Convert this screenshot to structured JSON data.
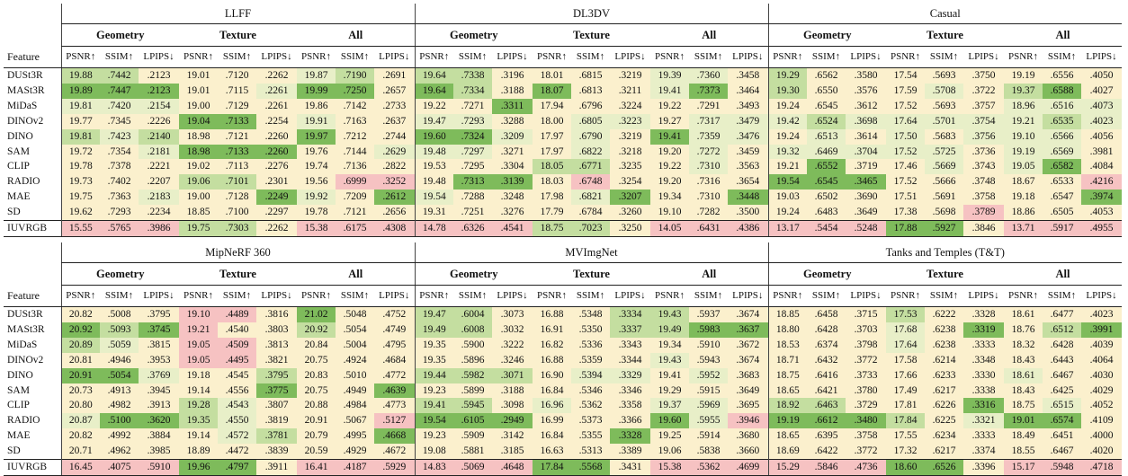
{
  "colors": {
    "best": "#7ebb5b",
    "good": "#c4dea0",
    "mild": "#e8efc8",
    "neutral": "#fbf0cd",
    "bad": "#f6c2c2",
    "worst": "#f4aaaa"
  },
  "header": {
    "feature_label": "Feature",
    "groups": [
      "Geometry",
      "Texture",
      "All"
    ],
    "metrics": [
      "PSNR↑",
      "SSIM↑",
      "LPIPS↓"
    ]
  },
  "features": [
    "DUSt3R",
    "MASt3R",
    "MiDaS",
    "DINOv2",
    "DINO",
    "SAM",
    "CLIP",
    "RADIO",
    "MAE",
    "SD",
    "IUVRGB"
  ],
  "sections": [
    {
      "datasets": [
        "LLFF",
        "DL3DV",
        "Casual"
      ],
      "rows": [
        [
          "19.88",
          ".7442",
          ".2123",
          "19.01",
          ".7120",
          ".2262",
          "19.87",
          ".7190",
          ".2691",
          "19.64",
          ".7338",
          ".3196",
          "18.01",
          ".6815",
          ".3219",
          "19.39",
          ".7360",
          ".3458",
          "19.29",
          ".6562",
          ".3580",
          "17.54",
          ".5693",
          ".3750",
          "19.19",
          ".6556",
          ".4050"
        ],
        [
          "19.89",
          ".7447",
          ".2123",
          "19.01",
          ".7115",
          ".2261",
          "19.99",
          ".7250",
          ".2657",
          "19.64",
          ".7334",
          ".3188",
          "18.07",
          ".6813",
          ".3211",
          "19.41",
          ".7373",
          ".3464",
          "19.30",
          ".6550",
          ".3576",
          "17.59",
          ".5708",
          ".3722",
          "19.37",
          ".6588",
          ".4027"
        ],
        [
          "19.81",
          ".7420",
          ".2154",
          "19.00",
          ".7129",
          ".2261",
          "19.86",
          ".7142",
          ".2733",
          "19.22",
          ".7271",
          ".3311",
          "17.94",
          ".6796",
          ".3224",
          "19.22",
          ".7291",
          ".3493",
          "19.24",
          ".6545",
          ".3612",
          "17.52",
          ".5693",
          ".3757",
          "18.96",
          ".6516",
          ".4073"
        ],
        [
          "19.77",
          ".7345",
          ".2226",
          "19.04",
          ".7133",
          ".2254",
          "19.91",
          ".7163",
          ".2637",
          "19.47",
          ".7293",
          ".3288",
          "18.00",
          ".6805",
          ".3223",
          "19.27",
          ".7317",
          ".3479",
          "19.42",
          ".6524",
          ".3698",
          "17.64",
          ".5701",
          ".3754",
          "19.21",
          ".6535",
          ".4023"
        ],
        [
          "19.81",
          ".7423",
          ".2140",
          "18.98",
          ".7121",
          ".2260",
          "19.97",
          ".7212",
          ".2744",
          "19.60",
          ".7324",
          ".3209",
          "17.97",
          ".6790",
          ".3219",
          "19.41",
          ".7359",
          ".3476",
          "19.24",
          ".6513",
          ".3614",
          "17.50",
          ".5683",
          ".3756",
          "19.10",
          ".6566",
          ".4056"
        ],
        [
          "19.72",
          ".7354",
          ".2181",
          "18.98",
          ".7133",
          ".2260",
          "19.76",
          ".7144",
          ".2629",
          "19.48",
          ".7297",
          ".3271",
          "17.97",
          ".6822",
          ".3218",
          "19.20",
          ".7272",
          ".3459",
          "19.32",
          ".6469",
          ".3704",
          "17.52",
          ".5725",
          ".3736",
          "19.19",
          ".6569",
          ".3981"
        ],
        [
          "19.78",
          ".7378",
          ".2221",
          "19.02",
          ".7113",
          ".2276",
          "19.74",
          ".7136",
          ".2822",
          "19.53",
          ".7295",
          ".3304",
          "18.05",
          ".6771",
          ".3235",
          "19.22",
          ".7310",
          ".3563",
          "19.21",
          ".6552",
          ".3719",
          "17.46",
          ".5669",
          ".3743",
          "19.05",
          ".6582",
          ".4084"
        ],
        [
          "19.73",
          ".7402",
          ".2207",
          "19.06",
          ".7101",
          ".2301",
          "19.56",
          ".6999",
          ".3252",
          "19.48",
          ".7313",
          ".3139",
          "18.03",
          ".6748",
          ".3254",
          "19.20",
          ".7316",
          ".3654",
          "19.54",
          ".6545",
          ".3465",
          "17.52",
          ".5666",
          ".3748",
          "18.67",
          ".6533",
          ".4216"
        ],
        [
          "19.75",
          ".7363",
          ".2183",
          "19.00",
          ".7128",
          ".2249",
          "19.92",
          ".7209",
          ".2612",
          "19.54",
          ".7288",
          ".3248",
          "17.98",
          ".6821",
          ".3207",
          "19.34",
          ".7310",
          ".3448",
          "19.03",
          ".6502",
          ".3690",
          "17.51",
          ".5691",
          ".3758",
          "19.18",
          ".6547",
          ".3974"
        ],
        [
          "19.62",
          ".7293",
          ".2234",
          "18.85",
          ".7100",
          ".2297",
          "19.78",
          ".7121",
          ".2656",
          "19.31",
          ".7251",
          ".3276",
          "17.79",
          ".6784",
          ".3260",
          "19.10",
          ".7282",
          ".3500",
          "19.24",
          ".6483",
          ".3649",
          "17.38",
          ".5698",
          ".3789",
          "18.86",
          ".6505",
          ".4053"
        ],
        [
          "15.55",
          ".5765",
          ".3986",
          "19.75",
          ".7303",
          ".2262",
          "15.38",
          ".6175",
          ".4308",
          "14.78",
          ".6326",
          ".4541",
          "18.75",
          ".7023",
          ".3250",
          "14.05",
          ".6431",
          ".4386",
          "13.17",
          ".5454",
          ".5248",
          "17.88",
          ".5927",
          ".3846",
          "13.71",
          ".5917",
          ".4955"
        ]
      ],
      "shades": [
        "ggnnnnmgnggnnnnmmngnnnnnnnn",
        "bbbnnmbbnbgnbnnmbngnnnmngbn",
        "mmmnnnnnnnnbnnnnnnnnnnnnmmm",
        "nnnbbnmnnmmnnmmnmmmgmmmmmgm",
        "gmgnnnbnnbbmnmnbmmnmnmnmmmn",
        "nnmbbbnnmmmnnmnnmnmmmmmnmmn",
        "nnnnnnnnnnnnggnnmnnbnnmnmbn",
        "nnnggnnrrnbbnrnnnnbbbnnnnnr",
        "nnmnnbmnbmnnnmbnnbnnnnnnnnb",
        "nnnnnnnnnnnnnnnnnnnnnnnrnnn",
        "rrrggnrrrrrrggnrrrrrrbbnrrr"
      ]
    },
    {
      "datasets": [
        "MipNeRF 360",
        "MVImgNet",
        "Tanks and Temples (T&T)"
      ],
      "rows": [
        [
          "20.82",
          ".5008",
          ".3795",
          "19.10",
          ".4489",
          ".3816",
          "21.02",
          ".5048",
          ".4752",
          "19.47",
          ".6004",
          ".3073",
          "16.88",
          ".5348",
          ".3334",
          "19.43",
          ".5937",
          ".3674",
          "18.85",
          ".6458",
          ".3715",
          "17.53",
          ".6222",
          ".3328",
          "18.61",
          ".6477",
          ".4023"
        ],
        [
          "20.92",
          ".5093",
          ".3745",
          "19.21",
          ".4540",
          ".3803",
          "20.92",
          ".5054",
          ".4749",
          "19.49",
          ".6008",
          ".3032",
          "16.91",
          ".5350",
          ".3337",
          "19.49",
          ".5983",
          ".3637",
          "18.80",
          ".6428",
          ".3703",
          "17.68",
          ".6238",
          ".3319",
          "18.76",
          ".6512",
          ".3991"
        ],
        [
          "20.89",
          ".5059",
          ".3815",
          "19.05",
          ".4509",
          ".3813",
          "20.84",
          ".5004",
          ".4795",
          "19.35",
          ".5900",
          ".3222",
          "16.82",
          ".5336",
          ".3343",
          "19.34",
          ".5910",
          ".3672",
          "18.53",
          ".6374",
          ".3798",
          "17.64",
          ".6238",
          ".3333",
          "18.32",
          ".6428",
          ".4039"
        ],
        [
          "20.81",
          ".4946",
          ".3953",
          "19.05",
          ".4495",
          ".3821",
          "20.75",
          ".4924",
          ".4684",
          "19.35",
          ".5896",
          ".3246",
          "16.88",
          ".5359",
          ".3344",
          "19.43",
          ".5943",
          ".3674",
          "18.71",
          ".6432",
          ".3772",
          "17.58",
          ".6214",
          ".3348",
          "18.43",
          ".6443",
          ".4064"
        ],
        [
          "20.91",
          ".5054",
          ".3769",
          "19.18",
          ".4545",
          ".3795",
          "20.83",
          ".5010",
          ".4772",
          "19.44",
          ".5982",
          ".3071",
          "16.90",
          ".5394",
          ".3329",
          "19.41",
          ".5952",
          ".3683",
          "18.75",
          ".6416",
          ".3733",
          "17.66",
          ".6233",
          ".3330",
          "18.61",
          ".6467",
          ".4030"
        ],
        [
          "20.73",
          ".4913",
          ".3945",
          "19.14",
          ".4556",
          ".3775",
          "20.75",
          ".4949",
          ".4639",
          "19.23",
          ".5899",
          ".3188",
          "16.84",
          ".5346",
          ".3346",
          "19.29",
          ".5915",
          ".3649",
          "18.65",
          ".6421",
          ".3780",
          "17.49",
          ".6217",
          ".3338",
          "18.43",
          ".6425",
          ".4029"
        ],
        [
          "20.80",
          ".4982",
          ".3913",
          "19.28",
          ".4543",
          ".3807",
          "20.88",
          ".4984",
          ".4773",
          "19.41",
          ".5945",
          ".3098",
          "16.96",
          ".5362",
          ".3358",
          "19.37",
          ".5969",
          ".3695",
          "18.92",
          ".6463",
          ".3729",
          "17.81",
          ".6226",
          ".3316",
          "18.75",
          ".6515",
          ".4052"
        ],
        [
          "20.87",
          ".5100",
          ".3620",
          "19.35",
          ".4550",
          ".3819",
          "20.91",
          ".5067",
          ".5127",
          "19.54",
          ".6105",
          ".2949",
          "16.99",
          ".5373",
          ".3366",
          "19.60",
          ".5955",
          ".3946",
          "19.19",
          ".6612",
          ".3480",
          "17.84",
          ".6225",
          ".3321",
          "19.01",
          ".6574",
          ".4109"
        ],
        [
          "20.82",
          ".4992",
          ".3884",
          "19.14",
          ".4572",
          ".3781",
          "20.79",
          ".4995",
          ".4668",
          "19.23",
          ".5909",
          ".3142",
          "16.84",
          ".5355",
          ".3328",
          "19.25",
          ".5914",
          ".3680",
          "18.65",
          ".6395",
          ".3758",
          "17.55",
          ".6234",
          ".3333",
          "18.49",
          ".6451",
          ".4000"
        ],
        [
          "20.71",
          ".4962",
          ".3985",
          "18.89",
          ".4472",
          ".3839",
          "20.59",
          ".4929",
          ".4672",
          "19.08",
          ".5881",
          ".3185",
          "16.63",
          ".5313",
          ".3389",
          "19.06",
          ".5838",
          ".3660",
          "18.69",
          ".6422",
          ".3772",
          "17.32",
          ".6217",
          ".3374",
          "18.55",
          ".6467",
          ".4020"
        ],
        [
          "16.45",
          ".4075",
          ".5910",
          "19.96",
          ".4797",
          ".3911",
          "16.41",
          ".4187",
          ".5929",
          "14.83",
          ".5069",
          ".4648",
          "17.84",
          ".5568",
          ".3431",
          "15.38",
          ".5362",
          ".4699",
          "15.29",
          ".5846",
          ".4736",
          "18.60",
          ".6526",
          ".3396",
          "15.17",
          ".5948",
          ".4718"
        ]
      ],
      "shades": [
        "nnnrrnbnnggnnnggnnnnngnnnnn",
        "bgbrnngnnggnnnggbbnnnmnbngb",
        "gmnrrnnnnnnnnnnnnnnnnmnnnnn",
        "nnnrrnnnnnnnnnnmnnnnnnnnnnn",
        "bbmnngnnngggnmmnmnnnnnnnmnn",
        "nnnnnbnnbnnnnnnnnnnnnnnnnnn",
        "nnngmnnnnggnmnnmmnggnnnbnmn",
        "mbbgmnnnrbbbnnnbmrbbbgnmbbn",
        "nnnnmgnnbnnnnnbnnnnnnnnnnnn",
        "nnnnnnnnnnnnnnnnnnnnnnnnnnn",
        "rrrbbnrrrrrrbbnrrrrrrbbnrrr"
      ]
    }
  ]
}
